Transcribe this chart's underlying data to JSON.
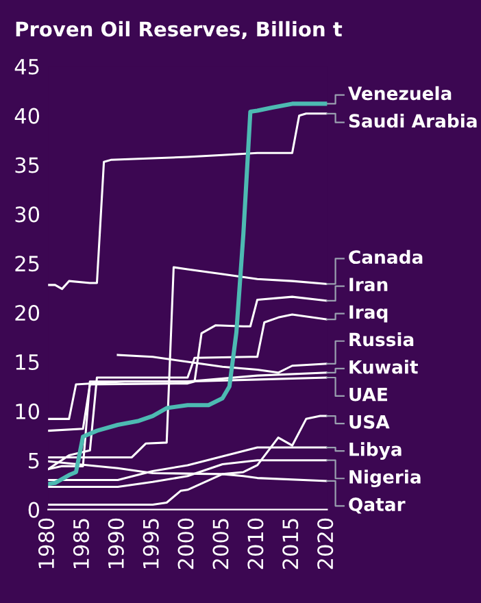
{
  "chart_data": {
    "type": "line",
    "title": "Proven Oil Reserves, Billion t",
    "xlim": [
      1980,
      2020
    ],
    "xticks": [
      1980,
      1985,
      1990,
      1995,
      2000,
      2005,
      2010,
      2015,
      2020
    ],
    "ylim": [
      0,
      45
    ],
    "yticks": [
      0,
      5,
      10,
      15,
      20,
      25,
      30,
      35,
      40,
      45
    ],
    "grid": false,
    "legend": false,
    "marker": "none",
    "line_style": "solid",
    "series": [
      {
        "name": "Venezuela",
        "color": "#4dbab2",
        "x": [
          1980,
          1981,
          1983,
          1984,
          1985,
          1987,
          1990,
          1993,
          1995,
          1997,
          2000,
          2003,
          2005,
          2006,
          2007,
          2008,
          2009,
          2010,
          2012,
          2015,
          2020
        ],
        "values": [
          2.6,
          2.7,
          3.5,
          3.8,
          7.4,
          8.0,
          8.6,
          9.0,
          9.5,
          10.3,
          10.6,
          10.6,
          11.3,
          12.5,
          18,
          28,
          40.4,
          40.5,
          40.8,
          41.2,
          41.2
        ]
      },
      {
        "name": "Saudi Arabia",
        "color": "#ffffff",
        "x": [
          1980,
          1981,
          1982,
          1983,
          1986,
          1987,
          1988,
          1989,
          2000,
          2005,
          2010,
          2015,
          2016,
          2017,
          2020
        ],
        "values": [
          22.8,
          22.8,
          22.4,
          23.2,
          23.0,
          23.0,
          35.3,
          35.5,
          35.8,
          36.0,
          36.2,
          36.2,
          40.0,
          40.2,
          40.2
        ]
      },
      {
        "name": "Canada",
        "color": "#ffffff",
        "x": [
          1980,
          1992,
          1994,
          1997,
          1998,
          2000,
          2005,
          2010,
          2015,
          2020
        ],
        "values": [
          5.3,
          5.3,
          6.7,
          6.8,
          24.6,
          24.4,
          23.9,
          23.4,
          23.2,
          22.9
        ]
      },
      {
        "name": "Iran",
        "color": "#ffffff",
        "x": [
          1980,
          1985,
          1986,
          2000,
          2001,
          2002,
          2004,
          2008,
          2009,
          2010,
          2015,
          2020
        ],
        "values": [
          8.0,
          8.2,
          12.7,
          12.8,
          13.0,
          17.9,
          18.7,
          18.6,
          18.6,
          21.3,
          21.6,
          21.2
        ]
      },
      {
        "name": "Iraq",
        "color": "#ffffff",
        "x": [
          1980,
          1983,
          1986,
          1987,
          2000,
          2001,
          2009,
          2010,
          2011,
          2013,
          2015,
          2020
        ],
        "values": [
          4.1,
          5.5,
          6.0,
          13.4,
          13.4,
          15.4,
          15.5,
          15.5,
          19.0,
          19.5,
          19.8,
          19.3
        ]
      },
      {
        "name": "Russia",
        "color": "#ffffff",
        "x": [
          1990,
          1995,
          2000,
          2005,
          2010,
          2013,
          2015,
          2020
        ],
        "values": [
          15.7,
          15.5,
          15.0,
          14.5,
          14.2,
          13.9,
          14.6,
          14.8
        ]
      },
      {
        "name": "Kuwait",
        "color": "#ffffff",
        "x": [
          1980,
          1983,
          1984,
          1991,
          2000,
          2010,
          2020
        ],
        "values": [
          9.2,
          9.2,
          12.7,
          13.0,
          13.0,
          13.6,
          13.9
        ]
      },
      {
        "name": "UAE",
        "color": "#ffffff",
        "x": [
          1980,
          1982,
          1985,
          1986,
          2000,
          2010,
          2020
        ],
        "values": [
          4.1,
          4.4,
          4.4,
          13.0,
          13.0,
          13.2,
          13.4
        ]
      },
      {
        "name": "USA",
        "color": "#ffffff",
        "x": [
          1980,
          1990,
          1995,
          2005,
          2008,
          2010,
          2013,
          2015,
          2017,
          2019,
          2020
        ],
        "values": [
          4.9,
          4.2,
          3.7,
          3.6,
          3.8,
          4.5,
          7.3,
          6.5,
          9.2,
          9.5,
          9.5
        ]
      },
      {
        "name": "Libya",
        "color": "#ffffff",
        "x": [
          1980,
          1990,
          1995,
          2000,
          2005,
          2010,
          2020
        ],
        "values": [
          3.0,
          3.0,
          3.9,
          4.5,
          5.4,
          6.3,
          6.3
        ]
      },
      {
        "name": "Nigeria",
        "color": "#ffffff",
        "x": [
          1980,
          1990,
          1995,
          2000,
          2005,
          2010,
          2020
        ],
        "values": [
          2.3,
          2.3,
          2.8,
          3.4,
          4.6,
          5.0,
          5.0
        ]
      },
      {
        "name": "Qatar",
        "color": "#ffffff",
        "x": [
          1980,
          1995,
          1997,
          1999,
          2000,
          2005,
          2008,
          2010,
          2020
        ],
        "values": [
          0.5,
          0.5,
          0.7,
          1.9,
          2.0,
          3.6,
          3.4,
          3.2,
          2.9
        ]
      }
    ]
  }
}
